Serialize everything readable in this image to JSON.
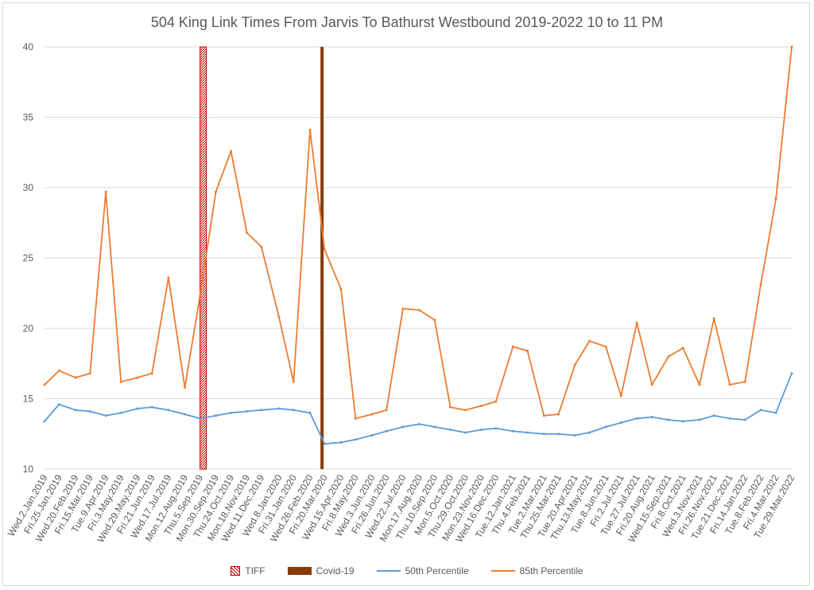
{
  "chart_data": {
    "type": "line",
    "title": "504 King Link Times From Jarvis To Bathurst Westbound 2019-2022 10 to 11 PM",
    "xlabel": "",
    "ylabel": "",
    "ylim": [
      10,
      40
    ],
    "yticks": [
      10,
      15,
      20,
      25,
      30,
      35,
      40
    ],
    "grid": true,
    "legend_position": "bottom",
    "x_tick_labels": [
      "Wed.2.Jan.2019",
      "Fri.25.Jan.2019",
      "Wed.20.Feb.2019",
      "Fri.15.Mar.2019",
      "Tue.9.Apr.2019",
      "Fri.3.May.2019",
      "Wed.29.May.2019",
      "Fri.21.Jun.2019",
      "Wed.17.Jul.2019",
      "Mon.12.Aug.2019",
      "Thu.5.Sep.2019",
      "Mon.30.Sep.2019",
      "Thu.24.Oct.2019",
      "Mon.18.Nov.2019",
      "Wed.11.Dec.2019",
      "Wed.8.Jan.2020",
      "Fri.31.Jan.2020",
      "Wed.26.Feb.2020",
      "Fri.20.Mar.2020",
      "Wed.15.Apr.2020",
      "Fri.8.May.2020",
      "Wed.3.Jun.2020",
      "Fri.26.Jun.2020",
      "Wed.22.Jul.2020",
      "Mon.17.Aug.2020",
      "Thu.10.Sep.2020",
      "Mon.5.Oct.2020",
      "Thu.29.Oct.2020",
      "Mon.23.Nov.2020",
      "Wed.16.Dec.2020",
      "Tue.12.Jan.2021",
      "Thu.4.Feb.2021",
      "Tue.2.Mar.2021",
      "Thu.25.Mar.2021",
      "Tue.20.Apr.2021",
      "Thu.13.May.2021",
      "Tue.8.Jun.2021",
      "Fri.2.Jul.2021",
      "Tue.27.Jul.2021",
      "Fri.20.Aug.2021",
      "Wed.15.Sep.2021",
      "Fri.8.Oct.2021",
      "Wed.3.Nov.2021",
      "Fri.26.Nov.2021",
      "Tue.21.Dec.2021",
      "Fri.14.Jan.2022",
      "Tue.8.Feb.2022",
      "Fri.4.Mar.2022",
      "Tue.29.Mar.2022"
    ],
    "series": [
      {
        "name": "TIFF",
        "kind": "band",
        "color": "#c00000",
        "start": "Thu.5.Sep.2019",
        "end": "Sun.15.Sep.2019"
      },
      {
        "name": "Covid-19",
        "kind": "marker",
        "color": "#843c0c",
        "x": "Mon.16.Mar.2020"
      },
      {
        "name": "50th Percentile",
        "kind": "line",
        "color": "#5b9bd5",
        "points": [
          [
            "Wed.2.Jan.2019",
            13.4
          ],
          [
            "Fri.25.Jan.2019",
            14.6
          ],
          [
            "Wed.20.Feb.2019",
            14.2
          ],
          [
            "Fri.15.Mar.2019",
            14.1
          ],
          [
            "Tue.9.Apr.2019",
            13.8
          ],
          [
            "Fri.3.May.2019",
            14.0
          ],
          [
            "Wed.29.May.2019",
            14.3
          ],
          [
            "Fri.21.Jun.2019",
            14.4
          ],
          [
            "Wed.17.Jul.2019",
            14.2
          ],
          [
            "Mon.12.Aug.2019",
            13.9
          ],
          [
            "Thu.5.Sep.2019",
            13.6
          ],
          [
            "Mon.30.Sep.2019",
            13.8
          ],
          [
            "Thu.24.Oct.2019",
            14.0
          ],
          [
            "Mon.18.Nov.2019",
            14.1
          ],
          [
            "Wed.11.Dec.2019",
            14.2
          ],
          [
            "Wed.8.Jan.2020",
            14.3
          ],
          [
            "Fri.31.Jan.2020",
            14.2
          ],
          [
            "Wed.26.Feb.2020",
            14.0
          ],
          [
            "Fri.20.Mar.2020",
            11.8
          ],
          [
            "Wed.15.Apr.2020",
            11.9
          ],
          [
            "Fri.8.May.2020",
            12.1
          ],
          [
            "Wed.3.Jun.2020",
            12.4
          ],
          [
            "Fri.26.Jun.2020",
            12.7
          ],
          [
            "Wed.22.Jul.2020",
            13.0
          ],
          [
            "Mon.17.Aug.2020",
            13.2
          ],
          [
            "Thu.10.Sep.2020",
            13.0
          ],
          [
            "Mon.5.Oct.2020",
            12.8
          ],
          [
            "Thu.29.Oct.2020",
            12.6
          ],
          [
            "Mon.23.Nov.2020",
            12.8
          ],
          [
            "Wed.16.Dec.2020",
            12.9
          ],
          [
            "Tue.12.Jan.2021",
            12.7
          ],
          [
            "Thu.4.Feb.2021",
            12.6
          ],
          [
            "Tue.2.Mar.2021",
            12.5
          ],
          [
            "Thu.25.Mar.2021",
            12.5
          ],
          [
            "Tue.20.Apr.2021",
            12.4
          ],
          [
            "Thu.13.May.2021",
            12.6
          ],
          [
            "Tue.8.Jun.2021",
            13.0
          ],
          [
            "Fri.2.Jul.2021",
            13.3
          ],
          [
            "Tue.27.Jul.2021",
            13.6
          ],
          [
            "Fri.20.Aug.2021",
            13.7
          ],
          [
            "Wed.15.Sep.2021",
            13.5
          ],
          [
            "Fri.8.Oct.2021",
            13.4
          ],
          [
            "Wed.3.Nov.2021",
            13.5
          ],
          [
            "Fri.26.Nov.2021",
            13.8
          ],
          [
            "Tue.21.Dec.2021",
            13.6
          ],
          [
            "Fri.14.Jan.2022",
            13.5
          ],
          [
            "Tue.8.Feb.2022",
            14.2
          ],
          [
            "Fri.4.Mar.2022",
            14.0
          ],
          [
            "Tue.29.Mar.2022",
            16.8
          ]
        ]
      },
      {
        "name": "85th Percentile",
        "kind": "line",
        "color": "#ed7d31",
        "points": [
          [
            "Wed.2.Jan.2019",
            16.0
          ],
          [
            "Fri.25.Jan.2019",
            17.0
          ],
          [
            "Wed.20.Feb.2019",
            16.5
          ],
          [
            "Fri.15.Mar.2019",
            16.8
          ],
          [
            "Tue.9.Apr.2019",
            29.7
          ],
          [
            "Fri.3.May.2019",
            16.2
          ],
          [
            "Wed.29.May.2019",
            16.5
          ],
          [
            "Fri.21.Jun.2019",
            16.8
          ],
          [
            "Wed.17.Jul.2019",
            23.6
          ],
          [
            "Mon.12.Aug.2019",
            15.8
          ],
          [
            "Thu.5.Sep.2019",
            22.3
          ],
          [
            "Mon.30.Sep.2019",
            29.7
          ],
          [
            "Thu.24.Oct.2019",
            32.6
          ],
          [
            "Mon.18.Nov.2019",
            26.8
          ],
          [
            "Wed.11.Dec.2019",
            25.8
          ],
          [
            "Wed.8.Jan.2020",
            20.8
          ],
          [
            "Fri.31.Jan.2020",
            16.2
          ],
          [
            "Wed.26.Feb.2020",
            34.1
          ],
          [
            "Fri.20.Mar.2020",
            25.6
          ],
          [
            "Wed.15.Apr.2020",
            22.8
          ],
          [
            "Fri.8.May.2020",
            13.6
          ],
          [
            "Wed.3.Jun.2020",
            13.9
          ],
          [
            "Fri.26.Jun.2020",
            14.2
          ],
          [
            "Wed.22.Jul.2020",
            21.4
          ],
          [
            "Mon.17.Aug.2020",
            21.3
          ],
          [
            "Thu.10.Sep.2020",
            20.6
          ],
          [
            "Mon.5.Oct.2020",
            14.4
          ],
          [
            "Thu.29.Oct.2020",
            14.2
          ],
          [
            "Mon.23.Nov.2020",
            14.5
          ],
          [
            "Wed.16.Dec.2020",
            14.8
          ],
          [
            "Tue.12.Jan.2021",
            18.7
          ],
          [
            "Thu.4.Feb.2021",
            18.4
          ],
          [
            "Tue.2.Mar.2021",
            13.8
          ],
          [
            "Thu.25.Mar.2021",
            13.9
          ],
          [
            "Tue.20.Apr.2021",
            17.4
          ],
          [
            "Thu.13.May.2021",
            19.1
          ],
          [
            "Tue.8.Jun.2021",
            18.7
          ],
          [
            "Fri.2.Jul.2021",
            15.2
          ],
          [
            "Tue.27.Jul.2021",
            20.4
          ],
          [
            "Fri.20.Aug.2021",
            16.0
          ],
          [
            "Wed.15.Sep.2021",
            18.0
          ],
          [
            "Fri.8.Oct.2021",
            18.6
          ],
          [
            "Wed.3.Nov.2021",
            16.0
          ],
          [
            "Fri.26.Nov.2021",
            20.7
          ],
          [
            "Tue.21.Dec.2021",
            16.0
          ],
          [
            "Fri.14.Jan.2022",
            16.2
          ],
          [
            "Tue.8.Feb.2022",
            23.1
          ],
          [
            "Fri.4.Mar.2022",
            29.2
          ],
          [
            "Tue.29.Mar.2022",
            40.0
          ]
        ]
      }
    ]
  }
}
